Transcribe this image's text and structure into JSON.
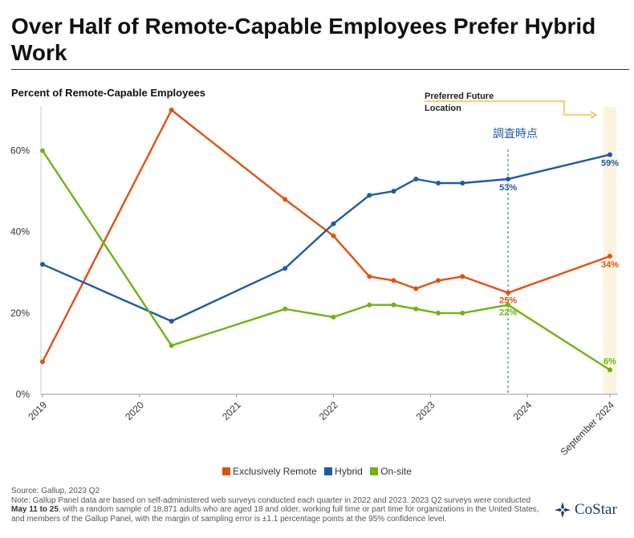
{
  "title": "Over Half of Remote-Capable Employees Prefer Hybrid Work",
  "subtitle": "Percent of Remote-Capable Employees",
  "annotation": {
    "future_label": "Preferred Future Location",
    "survey_marker_label": "調査時点"
  },
  "legend": [
    {
      "label": "Exclusively Remote",
      "color": "#e1520f"
    },
    {
      "label": "Hybrid",
      "color": "#1f5aa6"
    },
    {
      "label": "On-site",
      "color": "#6fb410"
    }
  ],
  "source": "Source: Gallup, 2023 Q2",
  "note": {
    "prefix": "Note: Gallup Panel data are based on self-administered web surveys conducted each quarter in 2022 and 2023. 2023 Q2 surveys were conducted ",
    "dates": "May 11 to 25",
    "suffix": ", with a random sample of 18,871 adults who are aged 18 and older, working full time or part time for organizations in the United States, and members of the Gallup Panel, with the margin of sampling error is ±1.1 percentage points at the 95% confidence level."
  },
  "logo": {
    "text": "CoStar",
    "icon": "costar-logo-icon"
  },
  "colors": {
    "accent_band": "#fdf3e1",
    "annotation_arrow": "#f2b01e",
    "marker_line": "#1f5aa6"
  },
  "chart_data": {
    "type": "line",
    "title": "Over Half of Remote-Capable Employees Prefer Hybrid Work",
    "ylabel": "Percent of Remote-Capable Employees",
    "ylim": [
      0,
      70
    ],
    "yticks": [
      0,
      20,
      40,
      60
    ],
    "ytick_labels": [
      "0%",
      "20%",
      "40%",
      "60%"
    ],
    "xlim": [
      2019.0,
      2024.85
    ],
    "xticks": [
      2019,
      2020,
      2021,
      2022,
      2023,
      2024,
      2024.85
    ],
    "xtick_labels": [
      "2019",
      "2020",
      "2021",
      "2022",
      "2023",
      "2024",
      "September 2024"
    ],
    "survey_marker_x": 2023.8,
    "future_band_x": [
      2024.78,
      2024.92
    ],
    "grid": false,
    "legend_position": "bottom",
    "series": [
      {
        "name": "Exclusively Remote",
        "color": "#e1520f",
        "x": [
          2019.0,
          2020.33,
          2021.5,
          2022.0,
          2022.37,
          2022.62,
          2022.85,
          2023.08,
          2023.33,
          2023.8,
          2024.85
        ],
        "values": [
          8,
          70,
          48,
          39,
          29,
          28,
          26,
          28,
          29,
          25,
          34
        ],
        "point_labels": [
          {
            "index": 9,
            "text": "25%"
          },
          {
            "index": 10,
            "text": "34%"
          }
        ]
      },
      {
        "name": "Hybrid",
        "color": "#1f5aa6",
        "x": [
          2019.0,
          2020.33,
          2021.5,
          2022.0,
          2022.37,
          2022.62,
          2022.85,
          2023.08,
          2023.33,
          2023.8,
          2024.85
        ],
        "values": [
          32,
          18,
          31,
          42,
          49,
          50,
          53,
          52,
          52,
          53,
          59
        ],
        "point_labels": [
          {
            "index": 9,
            "text": "53%"
          },
          {
            "index": 10,
            "text": "59%"
          }
        ]
      },
      {
        "name": "On-site",
        "color": "#6fb410",
        "x": [
          2019.0,
          2020.33,
          2021.5,
          2022.0,
          2022.37,
          2022.62,
          2022.85,
          2023.08,
          2023.33,
          2023.8,
          2024.85
        ],
        "values": [
          60,
          12,
          21,
          19,
          22,
          22,
          21,
          20,
          20,
          22,
          6
        ],
        "point_labels": [
          {
            "index": 9,
            "text": "22%"
          },
          {
            "index": 10,
            "text": "6%"
          }
        ]
      }
    ]
  }
}
